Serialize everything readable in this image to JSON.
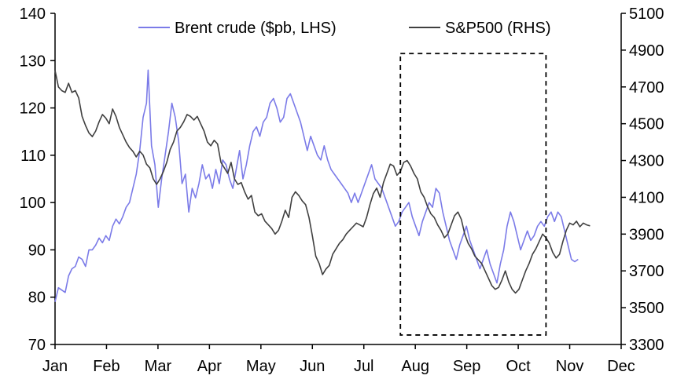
{
  "chart_data": {
    "type": "line",
    "title": "",
    "x_unit": "day of year",
    "categories": [
      "Jan",
      "Feb",
      "Mar",
      "Apr",
      "May",
      "Jun",
      "Jul",
      "Aug",
      "Sep",
      "Oct",
      "Nov",
      "Dec"
    ],
    "left_axis": {
      "ticks": [
        "70",
        "80",
        "90",
        "100",
        "110",
        "120",
        "130",
        "140"
      ],
      "ylim": [
        70,
        140
      ]
    },
    "right_axis": {
      "ticks": [
        "3300",
        "3500",
        "3700",
        "3900",
        "4100",
        "4300",
        "4500",
        "4700",
        "4900",
        "5100"
      ],
      "ylim": [
        3300,
        5100
      ]
    },
    "legend_position": "top",
    "grid": false,
    "highlight_box": {
      "x_start": 204,
      "x_end": 290,
      "left_y_top": 131.5,
      "left_y_bottom": 72
    },
    "series": [
      {
        "name": "Brent crude ($pb, LHS)",
        "axis": "left",
        "color": "#7b7be8",
        "points": [
          [
            0,
            79
          ],
          [
            2,
            82
          ],
          [
            4,
            81.5
          ],
          [
            6,
            81
          ],
          [
            8,
            84.5
          ],
          [
            10,
            86
          ],
          [
            12,
            86.5
          ],
          [
            14,
            88.5
          ],
          [
            16,
            88
          ],
          [
            18,
            86.5
          ],
          [
            20,
            90
          ],
          [
            22,
            90
          ],
          [
            24,
            91
          ],
          [
            26,
            92.5
          ],
          [
            28,
            91.5
          ],
          [
            30,
            93
          ],
          [
            32,
            92
          ],
          [
            34,
            95
          ],
          [
            36,
            96.5
          ],
          [
            38,
            95.5
          ],
          [
            40,
            97
          ],
          [
            42,
            99
          ],
          [
            44,
            100
          ],
          [
            46,
            103
          ],
          [
            48,
            106
          ],
          [
            50,
            111
          ],
          [
            52,
            118
          ],
          [
            54,
            121
          ],
          [
            55,
            128
          ],
          [
            57,
            112
          ],
          [
            59,
            108
          ],
          [
            61,
            99
          ],
          [
            63,
            105
          ],
          [
            65,
            110
          ],
          [
            67,
            115
          ],
          [
            69,
            121
          ],
          [
            71,
            118
          ],
          [
            73,
            113
          ],
          [
            75,
            104
          ],
          [
            77,
            106
          ],
          [
            79,
            98
          ],
          [
            81,
            103
          ],
          [
            83,
            101
          ],
          [
            85,
            104
          ],
          [
            87,
            108
          ],
          [
            89,
            105
          ],
          [
            91,
            106
          ],
          [
            93,
            103
          ],
          [
            95,
            107
          ],
          [
            97,
            104
          ],
          [
            99,
            109
          ],
          [
            101,
            108
          ],
          [
            103,
            105
          ],
          [
            105,
            103
          ],
          [
            107,
            107
          ],
          [
            109,
            111
          ],
          [
            111,
            105
          ],
          [
            113,
            108
          ],
          [
            115,
            112
          ],
          [
            117,
            115
          ],
          [
            119,
            116
          ],
          [
            121,
            114
          ],
          [
            123,
            117
          ],
          [
            125,
            118
          ],
          [
            127,
            121
          ],
          [
            129,
            122
          ],
          [
            131,
            120
          ],
          [
            133,
            117
          ],
          [
            135,
            118
          ],
          [
            137,
            122
          ],
          [
            139,
            123
          ],
          [
            141,
            121
          ],
          [
            143,
            119
          ],
          [
            145,
            117
          ],
          [
            147,
            114
          ],
          [
            149,
            111
          ],
          [
            151,
            114
          ],
          [
            153,
            112
          ],
          [
            155,
            110
          ],
          [
            157,
            109
          ],
          [
            159,
            112
          ],
          [
            161,
            109
          ],
          [
            163,
            107
          ],
          [
            165,
            106
          ],
          [
            167,
            105
          ],
          [
            169,
            104
          ],
          [
            171,
            103
          ],
          [
            173,
            102
          ],
          [
            175,
            100
          ],
          [
            177,
            102
          ],
          [
            179,
            100
          ],
          [
            181,
            102
          ],
          [
            183,
            104
          ],
          [
            185,
            106
          ],
          [
            187,
            108
          ],
          [
            189,
            105
          ],
          [
            191,
            104
          ],
          [
            193,
            103
          ],
          [
            195,
            101
          ],
          [
            197,
            99
          ],
          [
            199,
            97
          ],
          [
            201,
            95
          ],
          [
            203,
            96
          ],
          [
            205,
            98
          ],
          [
            207,
            99
          ],
          [
            209,
            100
          ],
          [
            211,
            97
          ],
          [
            213,
            95
          ],
          [
            215,
            93
          ],
          [
            217,
            96
          ],
          [
            219,
            98
          ],
          [
            221,
            100
          ],
          [
            223,
            99
          ],
          [
            225,
            103
          ],
          [
            227,
            102
          ],
          [
            229,
            98
          ],
          [
            231,
            95
          ],
          [
            233,
            92
          ],
          [
            235,
            90
          ],
          [
            237,
            88
          ],
          [
            239,
            91
          ],
          [
            241,
            93
          ],
          [
            243,
            95
          ],
          [
            245,
            92
          ],
          [
            247,
            90
          ],
          [
            249,
            88
          ],
          [
            251,
            86
          ],
          [
            253,
            88
          ],
          [
            255,
            90
          ],
          [
            257,
            87
          ],
          [
            259,
            85
          ],
          [
            261,
            83
          ],
          [
            263,
            87
          ],
          [
            265,
            90
          ],
          [
            267,
            95
          ],
          [
            269,
            98
          ],
          [
            271,
            96
          ],
          [
            273,
            93
          ],
          [
            275,
            90
          ],
          [
            277,
            92
          ],
          [
            279,
            94
          ],
          [
            281,
            92
          ],
          [
            283,
            93
          ],
          [
            285,
            95
          ],
          [
            287,
            96
          ],
          [
            289,
            95
          ],
          [
            291,
            97
          ],
          [
            293,
            98
          ],
          [
            295,
            96
          ],
          [
            297,
            98
          ],
          [
            299,
            97
          ],
          [
            301,
            94
          ],
          [
            303,
            91
          ],
          [
            305,
            88
          ],
          [
            307,
            87.5
          ],
          [
            309,
            88
          ]
        ]
      },
      {
        "name": "S&P500 (RHS)",
        "axis": "right",
        "color": "#404040",
        "points": [
          [
            0,
            4790
          ],
          [
            2,
            4700
          ],
          [
            4,
            4680
          ],
          [
            6,
            4670
          ],
          [
            8,
            4720
          ],
          [
            10,
            4670
          ],
          [
            12,
            4680
          ],
          [
            14,
            4640
          ],
          [
            16,
            4540
          ],
          [
            18,
            4490
          ],
          [
            20,
            4450
          ],
          [
            22,
            4430
          ],
          [
            24,
            4460
          ],
          [
            26,
            4510
          ],
          [
            28,
            4550
          ],
          [
            30,
            4530
          ],
          [
            32,
            4500
          ],
          [
            34,
            4580
          ],
          [
            36,
            4540
          ],
          [
            38,
            4480
          ],
          [
            40,
            4440
          ],
          [
            42,
            4400
          ],
          [
            44,
            4370
          ],
          [
            46,
            4350
          ],
          [
            48,
            4320
          ],
          [
            50,
            4350
          ],
          [
            52,
            4330
          ],
          [
            54,
            4280
          ],
          [
            56,
            4260
          ],
          [
            58,
            4200
          ],
          [
            60,
            4170
          ],
          [
            62,
            4200
          ],
          [
            64,
            4240
          ],
          [
            66,
            4290
          ],
          [
            68,
            4360
          ],
          [
            70,
            4400
          ],
          [
            72,
            4460
          ],
          [
            74,
            4480
          ],
          [
            76,
            4510
          ],
          [
            78,
            4550
          ],
          [
            80,
            4540
          ],
          [
            82,
            4520
          ],
          [
            84,
            4540
          ],
          [
            86,
            4500
          ],
          [
            88,
            4460
          ],
          [
            90,
            4400
          ],
          [
            92,
            4380
          ],
          [
            94,
            4410
          ],
          [
            96,
            4390
          ],
          [
            98,
            4290
          ],
          [
            100,
            4260
          ],
          [
            102,
            4230
          ],
          [
            104,
            4290
          ],
          [
            106,
            4200
          ],
          [
            108,
            4170
          ],
          [
            110,
            4180
          ],
          [
            112,
            4130
          ],
          [
            114,
            4090
          ],
          [
            116,
            4110
          ],
          [
            118,
            4020
          ],
          [
            120,
            4000
          ],
          [
            122,
            4010
          ],
          [
            124,
            3970
          ],
          [
            126,
            3950
          ],
          [
            128,
            3930
          ],
          [
            130,
            3900
          ],
          [
            132,
            3920
          ],
          [
            134,
            3970
          ],
          [
            136,
            4030
          ],
          [
            138,
            3990
          ],
          [
            140,
            4100
          ],
          [
            142,
            4130
          ],
          [
            144,
            4110
          ],
          [
            146,
            4080
          ],
          [
            148,
            4060
          ],
          [
            150,
            3990
          ],
          [
            152,
            3890
          ],
          [
            154,
            3780
          ],
          [
            156,
            3740
          ],
          [
            158,
            3680
          ],
          [
            160,
            3710
          ],
          [
            162,
            3730
          ],
          [
            164,
            3790
          ],
          [
            166,
            3820
          ],
          [
            168,
            3850
          ],
          [
            170,
            3870
          ],
          [
            172,
            3900
          ],
          [
            174,
            3920
          ],
          [
            176,
            3940
          ],
          [
            178,
            3960
          ],
          [
            180,
            3950
          ],
          [
            182,
            3940
          ],
          [
            184,
            3990
          ],
          [
            186,
            4060
          ],
          [
            188,
            4120
          ],
          [
            190,
            4150
          ],
          [
            192,
            4100
          ],
          [
            194,
            4180
          ],
          [
            196,
            4230
          ],
          [
            198,
            4280
          ],
          [
            200,
            4270
          ],
          [
            202,
            4220
          ],
          [
            204,
            4240
          ],
          [
            206,
            4290
          ],
          [
            208,
            4300
          ],
          [
            210,
            4270
          ],
          [
            212,
            4230
          ],
          [
            214,
            4200
          ],
          [
            216,
            4130
          ],
          [
            218,
            4100
          ],
          [
            220,
            4050
          ],
          [
            222,
            4010
          ],
          [
            224,
            3990
          ],
          [
            226,
            3950
          ],
          [
            228,
            3920
          ],
          [
            230,
            3880
          ],
          [
            232,
            3900
          ],
          [
            234,
            3950
          ],
          [
            236,
            4000
          ],
          [
            238,
            4020
          ],
          [
            240,
            3980
          ],
          [
            242,
            3900
          ],
          [
            244,
            3850
          ],
          [
            246,
            3820
          ],
          [
            248,
            3780
          ],
          [
            250,
            3760
          ],
          [
            252,
            3740
          ],
          [
            254,
            3700
          ],
          [
            256,
            3660
          ],
          [
            258,
            3620
          ],
          [
            260,
            3600
          ],
          [
            262,
            3610
          ],
          [
            264,
            3650
          ],
          [
            266,
            3700
          ],
          [
            268,
            3640
          ],
          [
            270,
            3600
          ],
          [
            272,
            3580
          ],
          [
            274,
            3600
          ],
          [
            276,
            3650
          ],
          [
            278,
            3700
          ],
          [
            280,
            3740
          ],
          [
            282,
            3790
          ],
          [
            284,
            3820
          ],
          [
            286,
            3860
          ],
          [
            288,
            3900
          ],
          [
            290,
            3880
          ],
          [
            292,
            3850
          ],
          [
            294,
            3800
          ],
          [
            296,
            3770
          ],
          [
            298,
            3790
          ],
          [
            300,
            3860
          ],
          [
            302,
            3920
          ],
          [
            304,
            3960
          ],
          [
            306,
            3950
          ],
          [
            308,
            3970
          ],
          [
            310,
            3940
          ],
          [
            312,
            3960
          ],
          [
            314,
            3950
          ],
          [
            316,
            3945
          ]
        ]
      }
    ]
  }
}
